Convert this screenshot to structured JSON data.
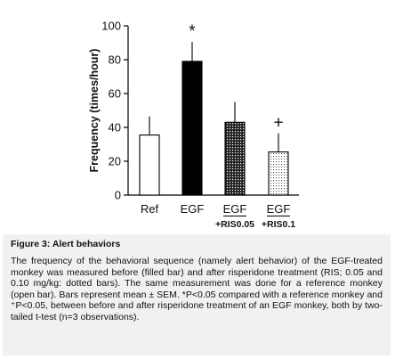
{
  "chart_data": {
    "type": "bar",
    "ylabel": "Frequency (times/hour)",
    "ylim": [
      0,
      100
    ],
    "yticks": [
      0,
      20,
      40,
      60,
      80,
      100
    ],
    "categories": [
      {
        "label": "Ref",
        "sublabel": ""
      },
      {
        "label": "EGF",
        "sublabel": ""
      },
      {
        "label": "EGF",
        "sublabel": "+RIS0.05"
      },
      {
        "label": "EGF",
        "sublabel": "+RIS0.1"
      }
    ],
    "values": [
      35.5,
      79,
      43,
      25.5
    ],
    "errors": [
      11,
      11.5,
      12,
      11
    ],
    "fills": [
      "open",
      "filled",
      "dotted-dense",
      "dotted-sparse"
    ],
    "annotations": [
      "",
      "*",
      "",
      "+"
    ],
    "colors": {
      "bar_stroke": "#000000",
      "filled": "#000000",
      "open": "#ffffff"
    }
  },
  "caption": {
    "title": "Figure 3:  Alert behaviors",
    "body": "The frequency of the behavioral sequence (namely alert behavior) of the EGF-treated monkey was measured before (filled bar) and after risperidone treatment (RIS; 0.05 and 0.10 mg/kg: dotted bars). The same measurement was done for a reference monkey (open bar). Bars represent mean ± SEM. *P<0.05 compared with a reference monkey and ⁺P<0.05, between before and after risperidone treatment of an EGF monkey, both by two-tailed t-test (n=3 observations)."
  }
}
